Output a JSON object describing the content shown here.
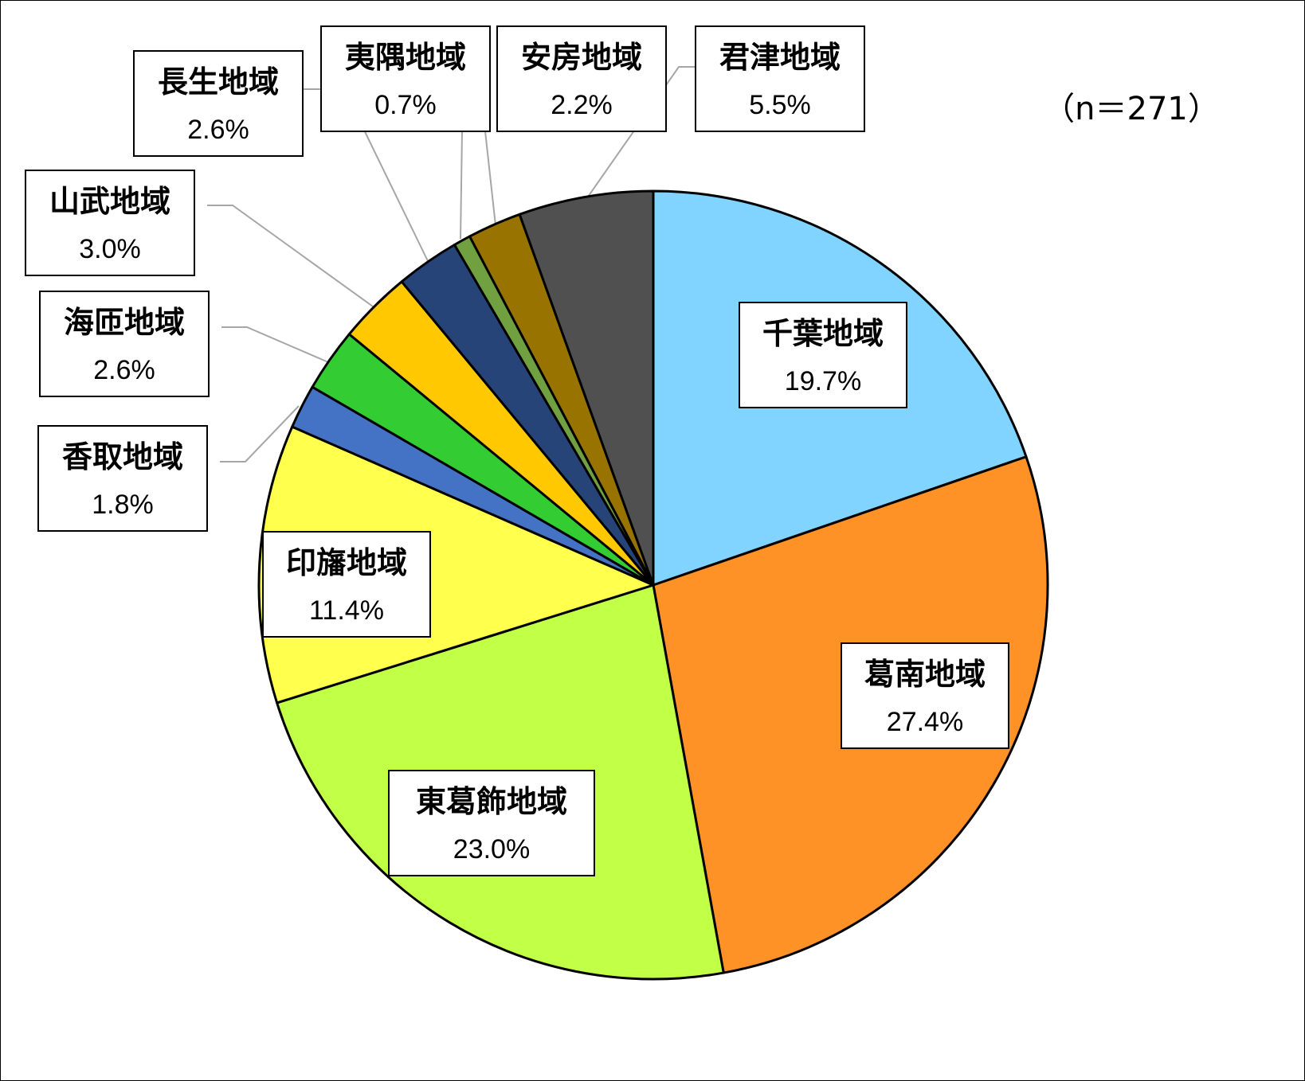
{
  "chart_data": {
    "type": "pie",
    "note_label": "（n＝271）",
    "start": "12 o'clock",
    "direction": "clockwise",
    "slices": [
      {
        "name": "千葉地域",
        "value": 19.7,
        "label": "19.7%",
        "color": "#80D4FF"
      },
      {
        "name": "葛南地域",
        "value": 27.4,
        "label": "27.4%",
        "color": "#FF9226"
      },
      {
        "name": "東葛飾地域",
        "value": 23.0,
        "label": "23.0%",
        "color": "#C2FF47"
      },
      {
        "name": "印旛地域",
        "value": 11.4,
        "label": "11.4%",
        "color": "#FFFF4D"
      },
      {
        "name": "香取地域",
        "value": 1.8,
        "label": "1.8%",
        "color": "#4472C4"
      },
      {
        "name": "海匝地域",
        "value": 2.6,
        "label": "2.6%",
        "color": "#33CC33"
      },
      {
        "name": "山武地域",
        "value": 3.0,
        "label": "3.0%",
        "color": "#FFC800"
      },
      {
        "name": "長生地域",
        "value": 2.6,
        "label": "2.6%",
        "color": "#264478"
      },
      {
        "name": "夷隅地域",
        "value": 0.7,
        "label": "0.7%",
        "color": "#70A040"
      },
      {
        "name": "安房地域",
        "value": 2.2,
        "label": "2.2%",
        "color": "#997300"
      },
      {
        "name": "君津地域",
        "value": 5.5,
        "label": "5.5%",
        "color": "#505050"
      }
    ]
  }
}
